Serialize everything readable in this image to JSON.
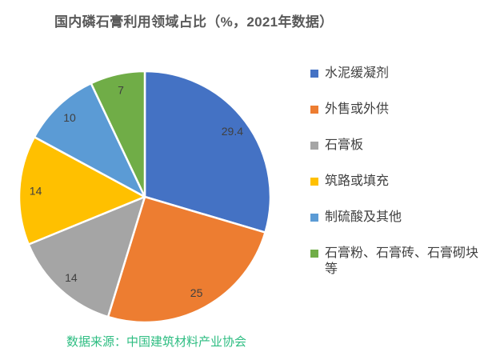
{
  "title": "国内磷石膏利用领域占比（%，2021年数据）",
  "source_note": "数据来源：中国建筑材料产业协会",
  "chart_data": {
    "type": "pie",
    "title": "国内磷石膏利用领域占比（%，2021年数据）",
    "categories": [
      "水泥缓凝剂",
      "外售或外供",
      "石膏板",
      "筑路或填充",
      "制硫酸及其他",
      "石膏粉、石膏砖、石膏砌块等"
    ],
    "values": [
      29.4,
      25,
      14,
      14,
      10,
      7
    ],
    "data_labels": [
      "29.4",
      "25",
      "14",
      "14",
      "10",
      "7"
    ],
    "colors": [
      "#4472C4",
      "#ED7D31",
      "#A5A5A5",
      "#FFC000",
      "#5B9BD5",
      "#70AD47"
    ],
    "unit": "%",
    "start_angle_deg": 0,
    "direction": "clockwise",
    "legend_position": "right",
    "label_position": "inside-end",
    "label_color": "#404040",
    "slice_border_color": "#ffffff"
  },
  "style_colors": {
    "title_color": "#595959",
    "legend_text_color": "#404040",
    "source_color": "#2EBD82"
  }
}
